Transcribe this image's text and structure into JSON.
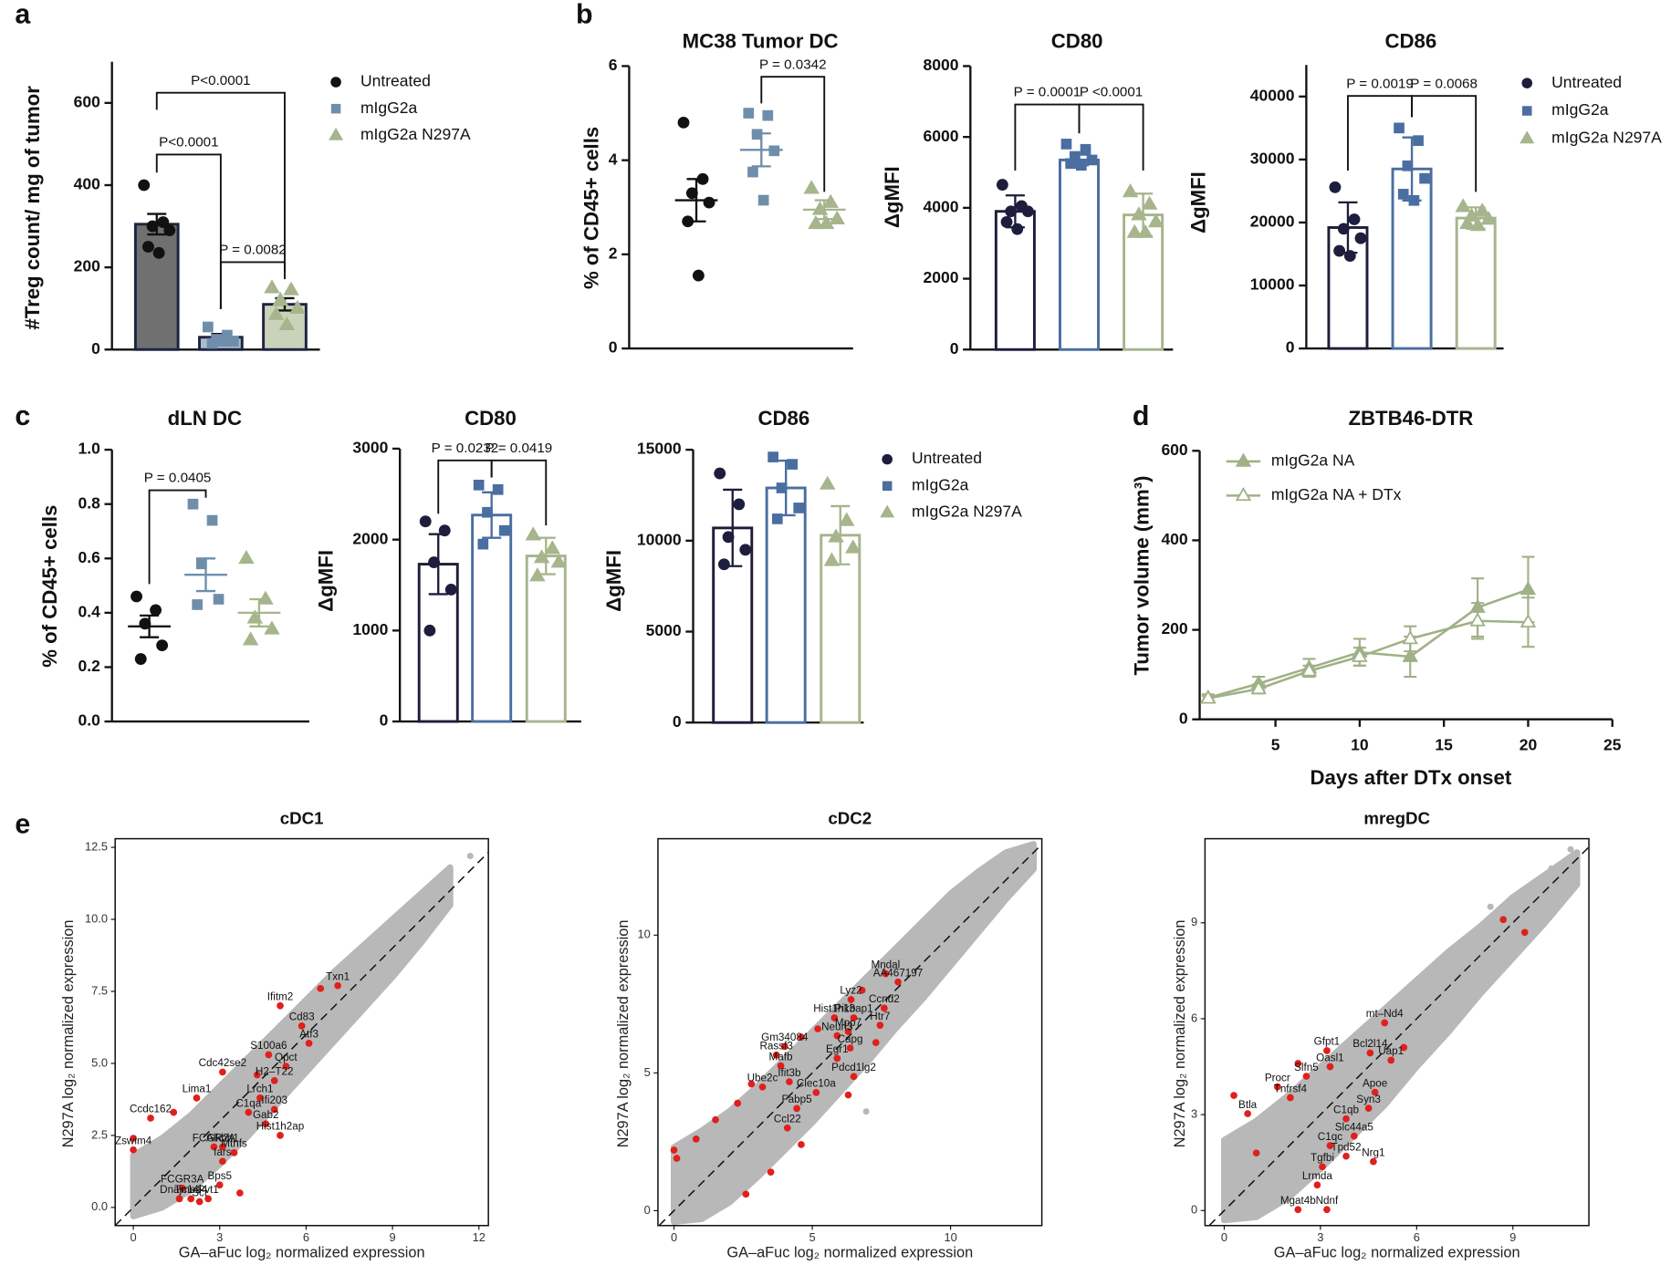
{
  "chart_data": [
    {
      "panel": "a",
      "type": "bar",
      "bar_fill": true,
      "ylabel": "#Treg count/ mg of tumor",
      "ylim": [
        0,
        700
      ],
      "yticks": [
        0,
        200,
        400,
        600
      ],
      "series": [
        {
          "name": "Untreated",
          "color": "#111111",
          "marker": "circle",
          "mean": 305,
          "error": 25,
          "values": [
            400,
            310,
            300,
            290,
            250,
            235
          ]
        },
        {
          "name": "mIgG2a",
          "color": "#6f8eab",
          "marker": "square",
          "mean": 30,
          "error": 8,
          "values": [
            55,
            35,
            25,
            20,
            15,
            20
          ]
        },
        {
          "name": "mIgG2a N297A",
          "color": "#a6b58c",
          "marker": "triangle",
          "mean": 110,
          "error": 15,
          "values": [
            150,
            145,
            120,
            100,
            85,
            60
          ]
        }
      ],
      "annotations": [
        "P<0.0001",
        "P<0.0001",
        "P = 0.0082"
      ]
    },
    {
      "panel": "b",
      "type": "dot",
      "title": "MC38 Tumor DC",
      "ylabel": "% of CD45+ cells",
      "ylim": [
        0,
        6
      ],
      "yticks": [
        0,
        2,
        4,
        6
      ],
      "series": [
        {
          "color": "#111111",
          "marker": "circle",
          "mean": 3.15,
          "error": 0.45,
          "values": [
            4.8,
            3.6,
            3.3,
            3.1,
            2.7,
            1.55
          ]
        },
        {
          "color": "#6f8eab",
          "marker": "square",
          "mean": 4.22,
          "error": 0.35,
          "values": [
            5.0,
            4.95,
            4.55,
            4.2,
            3.75,
            3.15
          ]
        },
        {
          "color": "#a6b58c",
          "marker": "triangle",
          "mean": 2.95,
          "error": 0.2,
          "values": [
            3.4,
            3.1,
            2.95,
            2.75,
            2.65,
            2.65
          ]
        }
      ],
      "annotations": [
        "P = 0.0342"
      ]
    },
    {
      "type": "bar",
      "bar_fill": false,
      "title": "CD80",
      "ylabel": "ΔgMFI",
      "ylim": [
        0,
        8000
      ],
      "yticks": [
        0,
        2000,
        4000,
        6000,
        8000
      ],
      "series": [
        {
          "color": "#1d1d3d",
          "marker": "circle",
          "mean": 3900,
          "error": 450,
          "values": [
            4650,
            4050,
            3900,
            3900,
            3600,
            3400
          ]
        },
        {
          "color": "#4a6ea0",
          "marker": "square",
          "mean": 5350,
          "error": 150,
          "values": [
            5800,
            5650,
            5450,
            5350,
            5250,
            5200
          ]
        },
        {
          "color": "#a6b58c",
          "marker": "triangle",
          "mean": 3800,
          "error": 600,
          "values": [
            4450,
            4100,
            3800,
            3600,
            3300,
            3300
          ]
        }
      ],
      "annotations": [
        "P = 0.0001",
        "P <0.0001"
      ]
    },
    {
      "type": "bar",
      "bar_fill": false,
      "title": "CD86",
      "ylabel": "ΔgMFI",
      "ylim": [
        0,
        45000
      ],
      "yticks": [
        0,
        10000,
        20000,
        30000,
        40000
      ],
      "series": [
        {
          "name": "Untreated",
          "color": "#1d1d3d",
          "marker": "circle",
          "mean": 19200,
          "error": 4000,
          "values": [
            25600,
            20500,
            19000,
            17500,
            15500,
            14700
          ]
        },
        {
          "name": "mIgG2a",
          "color": "#4a6ea0",
          "marker": "square",
          "mean": 28500,
          "error": 5000,
          "values": [
            35000,
            33000,
            29000,
            27000,
            24500,
            23500
          ]
        },
        {
          "name": "mIgG2a N297A",
          "color": "#a6b58c",
          "marker": "triangle",
          "mean": 20700,
          "error": 1700,
          "values": [
            22500,
            21800,
            21000,
            20500,
            19800,
            19500
          ]
        }
      ],
      "annotations": [
        "P = 0.0019",
        "P = 0.0068"
      ]
    },
    {
      "panel": "c",
      "type": "dot",
      "title": "dLN DC",
      "ylabel": "% of CD45+ cells",
      "ylim": [
        0,
        1
      ],
      "yticks": [
        {
          "value": 0,
          "label": "0.0"
        },
        0.2,
        0.4,
        0.6,
        0.8,
        {
          "value": 1,
          "label": "1.0"
        }
      ],
      "series": [
        {
          "color": "#111111",
          "marker": "circle",
          "mean": 0.35,
          "error": 0.04,
          "values": [
            0.46,
            0.41,
            0.36,
            0.28,
            0.23
          ]
        },
        {
          "color": "#6f8eab",
          "marker": "square",
          "mean": 0.54,
          "error": 0.06,
          "values": [
            0.8,
            0.74,
            0.58,
            0.45,
            0.43
          ]
        },
        {
          "color": "#a6b58c",
          "marker": "triangle",
          "mean": 0.4,
          "error": 0.05,
          "values": [
            0.6,
            0.45,
            0.38,
            0.34,
            0.3
          ]
        }
      ],
      "annotations": [
        "P = 0.0405"
      ]
    },
    {
      "type": "bar",
      "bar_fill": false,
      "title": "CD80",
      "ylabel": "ΔgMFI",
      "ylim": [
        0,
        3000
      ],
      "yticks": [
        0,
        1000,
        2000,
        3000
      ],
      "series": [
        {
          "color": "#1d1d3d",
          "marker": "circle",
          "mean": 1730,
          "error": 330,
          "values": [
            2200,
            2100,
            1750,
            1450,
            1000
          ]
        },
        {
          "color": "#4a6ea0",
          "marker": "square",
          "mean": 2270,
          "error": 250,
          "values": [
            2600,
            2550,
            2300,
            2100,
            1950
          ]
        },
        {
          "color": "#a6b58c",
          "marker": "triangle",
          "mean": 1820,
          "error": 200,
          "values": [
            2050,
            1900,
            1800,
            1750,
            1600
          ]
        }
      ],
      "annotations": [
        "P = 0.0232",
        "P = 0.0419"
      ]
    },
    {
      "type": "bar",
      "bar_fill": false,
      "title": "CD86",
      "ylabel": "ΔgMFI",
      "ylim": [
        0,
        15000
      ],
      "yticks": [
        0,
        5000,
        10000,
        15000
      ],
      "series": [
        {
          "name": "Untreated",
          "color": "#1d1d3d",
          "marker": "circle",
          "mean": 10700,
          "error": 2100,
          "values": [
            13700,
            12000,
            10200,
            9500,
            8700
          ]
        },
        {
          "name": "mIgG2a",
          "color": "#4a6ea0",
          "marker": "square",
          "mean": 12900,
          "error": 1500,
          "values": [
            14600,
            14200,
            12900,
            11800,
            11200
          ]
        },
        {
          "name": "mIgG2a N297A",
          "color": "#a6b58c",
          "marker": "triangle",
          "mean": 10300,
          "error": 1600,
          "values": [
            13100,
            11100,
            10200,
            9600,
            8900
          ]
        }
      ]
    },
    {
      "panel": "d",
      "type": "line",
      "title": "ZBTB46-DTR",
      "ylabel": "Tumor volume (mm³)",
      "xlabel": "Days after DTx onset",
      "xlim": [
        0.5,
        25
      ],
      "xticks": [
        5,
        10,
        15,
        20,
        25
      ],
      "ylim": [
        0,
        600
      ],
      "yticks": [
        0,
        200,
        400,
        600
      ],
      "x": [
        1,
        4,
        7,
        10,
        13,
        17,
        20
      ],
      "series": [
        {
          "name": "mIgG2a NA",
          "color": "#9fb186",
          "marker": "triangle",
          "values": [
            48,
            80,
            115,
            150,
            140,
            250,
            290
          ],
          "errors": [
            8,
            15,
            20,
            30,
            45,
            65,
            73
          ]
        },
        {
          "name": "mIgG2a NA + DTx",
          "color": "#9fb186",
          "marker": "triangle-open",
          "values": [
            47,
            68,
            108,
            140,
            180,
            220,
            217
          ],
          "errors": [
            5,
            10,
            12,
            20,
            28,
            40,
            55
          ]
        }
      ]
    },
    {
      "panel": "e",
      "type": "scatter",
      "title": "cDC1",
      "xlabel": "GA–aFuc log₂ normalized expression",
      "ylabel": "N297A log₂ normalized expression",
      "xlim": [
        -0.63,
        12.33
      ],
      "xticks": [
        0,
        3,
        6,
        9,
        12
      ],
      "ylim": [
        -0.63,
        12.8
      ],
      "yticks": [
        {
          "value": 0,
          "label": "0.0"
        },
        2.5,
        {
          "value": 5,
          "label": "5.0"
        },
        7.5,
        {
          "value": 10,
          "label": "10.0"
        },
        12.5
      ],
      "diagonal": true,
      "envelope": {
        "color": "#b8b8b8",
        "x": [
          0,
          1,
          2,
          3,
          4,
          5,
          6,
          7,
          8,
          9,
          10,
          11
        ],
        "lower": [
          -0.3,
          0,
          0.6,
          1.5,
          2.5,
          3.6,
          4.7,
          5.8,
          6.9,
          8.0,
          9.2,
          10.5
        ],
        "upper": [
          1.8,
          2.4,
          3.2,
          4.2,
          5.2,
          6.2,
          7.2,
          8.2,
          9.1,
          10.0,
          10.9,
          11.8
        ]
      },
      "outliers": {
        "color": "#b8b8b8",
        "x": [
          11.7,
          10.5,
          9.6,
          8.3,
          6.9,
          7.6
        ],
        "y": [
          12.2,
          10.8,
          9.4,
          8.4,
          6.0,
          6.8
        ]
      },
      "highlight": {
        "color": "#e0201b",
        "x": [
          7.1,
          5.1,
          5.85,
          6.1,
          4.7,
          3.1,
          5.3,
          4.9,
          2.2,
          4.4,
          4.0,
          4.9,
          0.6,
          4.6,
          2.8,
          3.1,
          5.1,
          3.5,
          0,
          3.1,
          1.7,
          3.0,
          1.6,
          2.6,
          2.0,
          2.3,
          6.5,
          4.3,
          0,
          1.4,
          3.7
        ],
        "y": [
          7.7,
          7.0,
          6.3,
          5.7,
          5.3,
          4.7,
          4.9,
          4.4,
          3.8,
          3.8,
          3.3,
          3.4,
          3.1,
          2.9,
          2.1,
          2.1,
          2.5,
          1.9,
          2.0,
          1.6,
          0.67,
          0.78,
          0.3,
          0.3,
          0.3,
          0.2,
          7.6,
          4.6,
          2.4,
          3.3,
          0.5
        ],
        "labels": [
          "Txn1",
          "Ifitm2",
          "Cd83",
          "Atf3",
          "S100a6",
          "Cdc42se2",
          "Qpct",
          "H2–T22",
          "Lima1",
          "Lrch1",
          "C1qa",
          "Ifi203",
          "Ccdc162",
          "Gab2",
          "FCGR2A",
          "Alkbh1",
          "Hist1h2ap",
          "Mthfs",
          "Zswim4",
          "Iars",
          "FCGR3A",
          "Bps5",
          "Dnajc14",
          "Pvt1",
          "Tmed4",
          "Sct",
          null,
          null,
          null,
          null,
          null
        ]
      }
    },
    {
      "type": "scatter",
      "title": "cDC2",
      "xlabel": "GA–aFuc log₂ normalized expression",
      "ylabel": "N297A log₂ normalized expression",
      "xlim": [
        -0.58,
        13.3
      ],
      "xticks": [
        0,
        5,
        10
      ],
      "ylim": [
        -0.54,
        13.5
      ],
      "yticks": [
        0,
        5,
        10
      ],
      "diagonal": true,
      "envelope": {
        "color": "#b8b8b8",
        "x": [
          0,
          1,
          2,
          3,
          4,
          5,
          6,
          7,
          8,
          9,
          10,
          11,
          12,
          13
        ],
        "lower": [
          -0.4,
          -0.3,
          0.3,
          1.2,
          2.2,
          3.2,
          4.3,
          5.4,
          6.6,
          7.7,
          8.9,
          10.1,
          11.3,
          12.4
        ],
        "upper": [
          2.3,
          2.9,
          3.6,
          4.5,
          5.5,
          6.5,
          7.5,
          8.5,
          9.5,
          10.5,
          11.5,
          12.3,
          13.0,
          13.3
        ]
      },
      "outliers": {
        "color": "#b8b8b8",
        "x": [
          12.7,
          11.9,
          10.4,
          6.95
        ],
        "y": [
          13.1,
          12.0,
          10.9,
          3.6
        ]
      },
      "highlight": {
        "color": "#e0201b",
        "x": [
          7.65,
          8.1,
          6.4,
          5.8,
          6.5,
          7.6,
          5.9,
          6.3,
          7.45,
          3.7,
          4.0,
          6.37,
          3.86,
          5.9,
          4.17,
          6.5,
          3.2,
          5.14,
          4.44,
          4.1,
          0,
          0.1,
          0.8,
          1.5,
          2.3,
          2.8,
          2.6,
          3.5,
          4.6,
          6.3,
          7.3,
          5.2,
          4.6,
          6.8
        ],
        "y": [
          8.6,
          8.3,
          7.66,
          7.0,
          7.0,
          7.35,
          6.35,
          6.5,
          6.73,
          5.65,
          5.96,
          5.9,
          5.26,
          5.53,
          4.68,
          4.87,
          4.49,
          4.29,
          3.71,
          3.0,
          2.2,
          1.9,
          2.6,
          3.3,
          3.9,
          4.6,
          0.6,
          1.4,
          2.4,
          4.2,
          6.1,
          6.6,
          6.3,
          8.0
        ],
        "labels": [
          "Mndal",
          "AA467197",
          "Lyz2",
          "Hist1h1b",
          "Pik3ap1",
          "Ccnd2",
          "Neurl3",
          "Mpp7",
          "Htr7",
          "Rassf3",
          "Gm34084",
          "Capg",
          "Mafb",
          "Egr1",
          "Ifit3b",
          "Pdcd1lg2",
          "Ube2c",
          "Clec10a",
          "Fabp5",
          "Ccl22",
          null,
          null,
          null,
          null,
          null,
          null,
          null,
          null,
          null,
          null,
          null,
          null,
          null,
          null
        ]
      }
    },
    {
      "type": "scatter",
      "title": "mregDC",
      "xlabel": "GA–aFuc log₂ normalized expression",
      "ylabel": "N297A log₂ normalized expression",
      "xlim": [
        -0.6,
        11.37
      ],
      "xticks": [
        0,
        3,
        6,
        9
      ],
      "ylim": [
        -0.47,
        11.63
      ],
      "yticks": [
        0,
        3,
        6,
        9
      ],
      "diagonal": true,
      "envelope": {
        "color": "#b8b8b8",
        "x": [
          0,
          1,
          2,
          3,
          4,
          5,
          6,
          7,
          8,
          9,
          10,
          11
        ],
        "lower": [
          -0.3,
          -0.2,
          0.4,
          1.3,
          2.3,
          3.3,
          4.5,
          5.6,
          6.8,
          7.9,
          9.0,
          10.2
        ],
        "upper": [
          2.2,
          2.8,
          3.6,
          4.5,
          5.4,
          6.3,
          7.2,
          8.1,
          8.9,
          9.8,
          10.5,
          11.2
        ]
      },
      "outliers": {
        "color": "#b8b8b8",
        "x": [
          10.8,
          10.2,
          8.3,
          7.0
        ],
        "y": [
          11.3,
          10.7,
          9.5,
          7.0
        ]
      },
      "highlight": {
        "color": "#e0201b",
        "x": [
          5.0,
          3.2,
          4.55,
          2.56,
          3.3,
          5.2,
          1.66,
          4.7,
          2.06,
          0.73,
          4.5,
          3.8,
          4.05,
          3.3,
          3.8,
          3.06,
          4.65,
          2.9,
          2.3,
          3.2,
          9.37,
          8.7,
          1.0,
          0.3,
          5.6,
          2.3
        ],
        "y": [
          5.87,
          5.0,
          4.93,
          4.2,
          4.5,
          4.7,
          3.87,
          3.7,
          3.53,
          3.03,
          3.2,
          2.87,
          2.33,
          2.03,
          1.7,
          1.37,
          1.53,
          0.8,
          0.03,
          0.03,
          8.7,
          9.1,
          1.8,
          3.6,
          5.1,
          4.6
        ],
        "labels": [
          "mt–Nd4",
          "Gfpt1",
          "Bcl2l14",
          "Slfn5",
          "Oasl1",
          "Uap1",
          "Procr",
          "Apoe",
          "Tnfrsf4",
          "Btla",
          "Syn3",
          "C1qb",
          "Slc44a5",
          "C1qc",
          "Tpd52",
          "Tgfbi",
          "Nrg1",
          "Lrmda",
          "Mgat4b",
          "Ndnf",
          null,
          null,
          null,
          null,
          null,
          null
        ]
      }
    }
  ]
}
